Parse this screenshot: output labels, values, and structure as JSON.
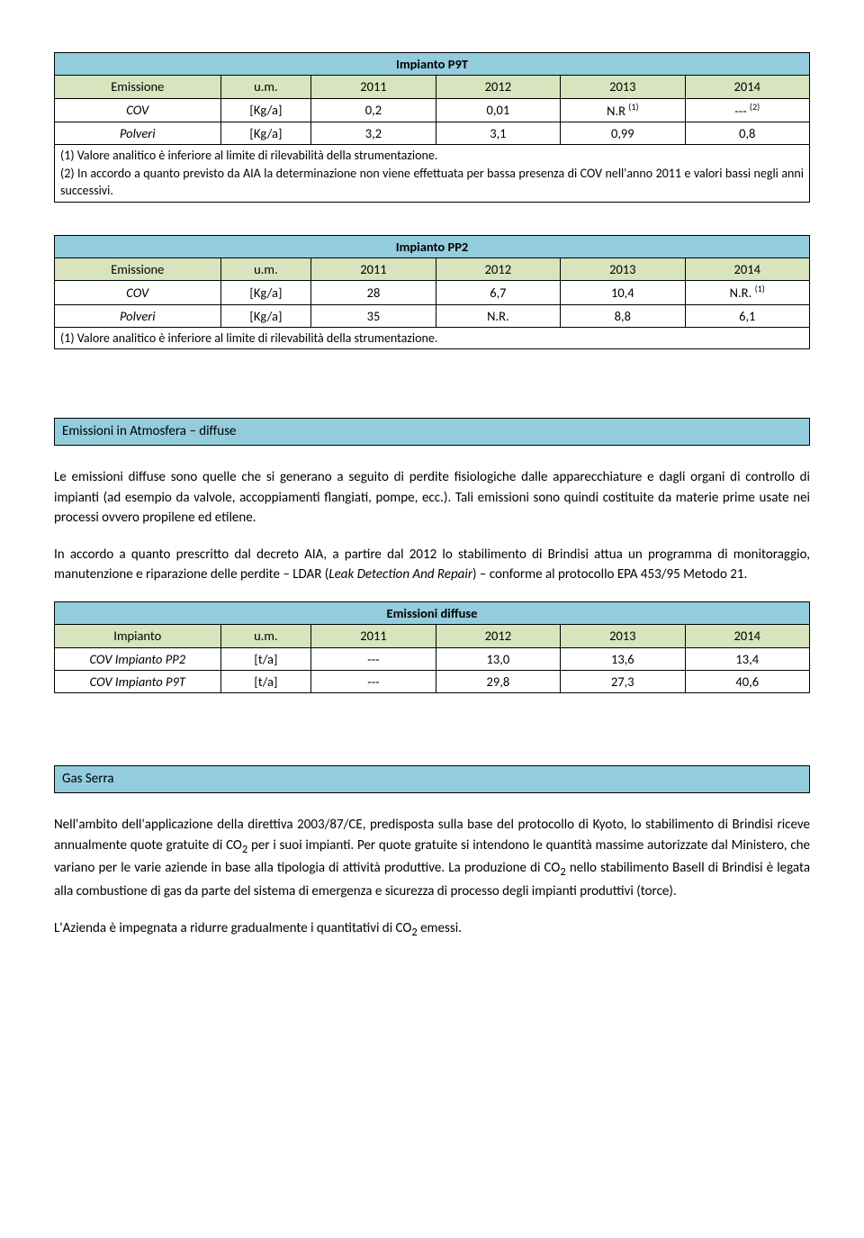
{
  "table_p9t": {
    "title": "Impianto P9T",
    "cols": [
      "Emissione",
      "u.m.",
      "2011",
      "2012",
      "2013",
      "2014"
    ],
    "rows": [
      {
        "label": "COV",
        "unit": "[Kg/a]",
        "v2011": "0,2",
        "v2012": "0,01",
        "v2013_html": "N.R <sup>(1)</sup>",
        "v2014_html": "--- <sup>(2)</sup>"
      },
      {
        "label": "Polveri",
        "unit": "[Kg/a]",
        "v2011": "3,2",
        "v2012": "3,1",
        "v2013": "0,99",
        "v2014": "0,8"
      }
    ],
    "notes": [
      "(1)   Valore analitico è inferiore al limite di rilevabilità della strumentazione.",
      "(2)   In accordo a quanto previsto da AIA la determinazione non viene effettuata per bassa presenza di COV nell'anno 2011 e valori bassi negli anni successivi."
    ]
  },
  "table_pp2": {
    "title": "Impianto PP2",
    "cols": [
      "Emissione",
      "u.m.",
      "2011",
      "2012",
      "2013",
      "2014"
    ],
    "rows": [
      {
        "label": "COV",
        "unit": "[Kg/a]",
        "v2011": "28",
        "v2012": "6,7",
        "v2013": "10,4",
        "v2014_html": "N.R. <sup>(1)</sup>"
      },
      {
        "label": "Polveri",
        "unit": "[Kg/a]",
        "v2011": "35",
        "v2012": "N.R.",
        "v2013": "8,8",
        "v2014": "6,1"
      }
    ],
    "notes": [
      "(1)   Valore analitico è inferiore al limite di rilevabilità della strumentazione."
    ]
  },
  "section_diffuse": {
    "title": "Emissioni in Atmosfera – diffuse",
    "p1": "Le emissioni diffuse sono quelle che si generano a seguito di perdite fisiologiche dalle apparecchiature e dagli organi di controllo di impianti (ad esempio da valvole, accoppiamenti flangiati, pompe, ecc.). Tali emissioni sono quindi costituite da materie prime usate nei processi ovvero propilene ed etilene.",
    "p2_html": "In accordo a quanto prescritto dal decreto AIA, a partire dal 2012 lo stabilimento di Brindisi attua un programma di monitoraggio, manutenzione e riparazione delle perdite – LDAR  (<span class=\"italic\">Leak Detection And Repair</span>) – conforme al protocollo EPA 453/95 Metodo 21."
  },
  "table_diffuse": {
    "title": "Emissioni diffuse",
    "cols": [
      "Impianto",
      "u.m.",
      "2011",
      "2012",
      "2013",
      "2014"
    ],
    "rows": [
      {
        "label": "COV Impianto PP2",
        "unit": "[t/a]",
        "v2011": "---",
        "v2012": "13,0",
        "v2013": "13,6",
        "v2014": "13,4"
      },
      {
        "label": "COV Impianto P9T",
        "unit": "[t/a]",
        "v2011": "---",
        "v2012": "29,8",
        "v2013": "27,3",
        "v2014": "40,6"
      }
    ]
  },
  "section_gas": {
    "title": "Gas Serra",
    "p1_html": "Nell'ambito dell'applicazione della direttiva 2003/87/CE, predisposta sulla base del protocollo di Kyoto, lo stabilimento di Brindisi riceve annualmente quote  gratuite di CO<sub>2</sub> per i suoi impianti. Per quote gratuite si intendono le quantità massime autorizzate dal Ministero, che variano per le varie aziende in base alla tipologia di attività produttive. La produzione di CO<sub>2</sub> nello stabilimento Basell di Brindisi è legata alla combustione di gas da parte del sistema di emergenza e sicurezza di processo degli impianti produttivi (torce).",
    "p2_html": "L'Azienda è impegnata a ridurre gradualmente i quantitativi di CO<sub>2</sub> emessi."
  },
  "colwidths": {
    "c0": "22%",
    "c1": "12%",
    "c2": "16.5%",
    "c3": "16.5%",
    "c4": "16.5%",
    "c5": "16.5%"
  }
}
